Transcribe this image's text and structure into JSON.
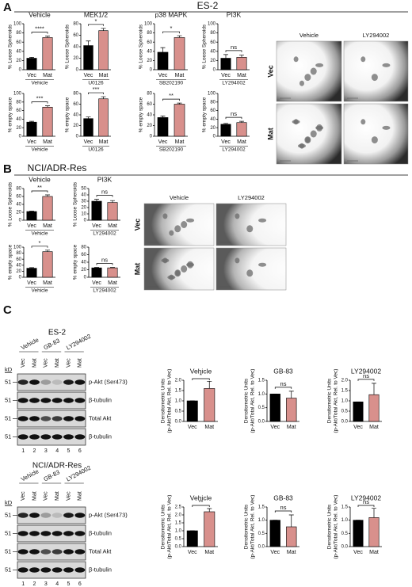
{
  "panel_labels": [
    "A",
    "B",
    "C"
  ],
  "section_titles": [
    "ES-2",
    "NCI/ADR-Res"
  ],
  "micrographs": [
    {
      "columns": [
        "Vehicle",
        "LY294002"
      ],
      "rows": [
        "Vec",
        "Mat"
      ]
    },
    {
      "columns": [
        "Vehicle",
        "LY294002"
      ],
      "rows": [
        "Vec",
        "Mat"
      ]
    }
  ],
  "blots": [
    {
      "title": "ES-2",
      "groups": [
        "Vehicle",
        "GB-83",
        "LY294002"
      ],
      "lanes": [
        "Vec",
        "Mat",
        "Vec",
        "Mat",
        "Vec",
        "Mat"
      ],
      "unit": "kD",
      "markers": [
        "51",
        "51",
        "51",
        "51"
      ],
      "bands": [
        "p-Akt (Ser473)",
        "β-tubulin",
        "Total Akt",
        "β-tubulin"
      ],
      "lane_numbers": [
        "1",
        "2",
        "3",
        "4",
        "5",
        "6"
      ]
    },
    {
      "title": "NCI/ADR-Res",
      "groups": [
        "Vehicle",
        "GB-83",
        "LY294002"
      ],
      "lanes": [
        "Vec",
        "Mat",
        "Vec",
        "Mat",
        "Vec",
        "Mat"
      ],
      "unit": "kD",
      "markers": [
        "51",
        "51",
        "51",
        "51"
      ],
      "bands": [
        "p-Akt (Ser473)",
        "β-tubulin",
        "Total Akt",
        "β-tubulin"
      ],
      "lane_numbers": [
        "1",
        "2",
        "3",
        "4",
        "5",
        "6"
      ]
    }
  ],
  "chart_data": [
    {
      "type": "bar",
      "title": "Vehicle",
      "ylabel": "% Loose Spheroids",
      "xlabel": "Vehicle",
      "categories": [
        "Vec",
        "Mat"
      ],
      "values": [
        25,
        70
      ],
      "errors": [
        2,
        3
      ],
      "colors": [
        "#000000",
        "#d8908c"
      ],
      "annotation": "****",
      "ylim": [
        0,
        100
      ],
      "yticks": [
        0,
        20,
        40,
        60,
        80,
        100
      ]
    },
    {
      "type": "bar",
      "title": "MEK1/2",
      "ylabel": "% Loose Spheroids",
      "xlabel": "U0126",
      "categories": [
        "Vec",
        "Mat"
      ],
      "values": [
        42,
        68
      ],
      "errors": [
        8,
        4
      ],
      "colors": [
        "#000000",
        "#d8908c"
      ],
      "annotation": "*",
      "ylim": [
        0,
        80
      ],
      "yticks": [
        0,
        20,
        40,
        60,
        80
      ]
    },
    {
      "type": "bar",
      "title": "p38 MAPK",
      "ylabel": "% Loose Spheroids",
      "xlabel": "SB202190",
      "categories": [
        "Vec",
        "Mat"
      ],
      "values": [
        38,
        70
      ],
      "errors": [
        10,
        4
      ],
      "colors": [
        "#000000",
        "#d8908c"
      ],
      "annotation": "*",
      "ylim": [
        0,
        100
      ],
      "yticks": [
        0,
        20,
        40,
        60,
        80,
        100
      ]
    },
    {
      "type": "bar",
      "title": "PI3K",
      "ylabel": "% Loose Spheroids",
      "xlabel": "LY294002",
      "categories": [
        "Vec",
        "Mat"
      ],
      "values": [
        25,
        27
      ],
      "errors": [
        8,
        5
      ],
      "colors": [
        "#000000",
        "#d8908c"
      ],
      "annotation": "ns",
      "ylim": [
        0,
        100
      ],
      "yticks": [
        0,
        20,
        40,
        60,
        80,
        100
      ]
    },
    {
      "type": "bar",
      "ylabel": "% empty space",
      "xlabel": "Vehicle",
      "categories": [
        "Vec",
        "Mat"
      ],
      "values": [
        33,
        68
      ],
      "errors": [
        2,
        3
      ],
      "colors": [
        "#000000",
        "#d8908c"
      ],
      "annotation": "***",
      "ylim": [
        0,
        100
      ],
      "yticks": [
        0,
        20,
        40,
        60,
        80,
        100
      ]
    },
    {
      "type": "bar",
      "ylabel": "% empty space",
      "xlabel": "U0126",
      "categories": [
        "Vec",
        "Mat"
      ],
      "values": [
        33,
        70
      ],
      "errors": [
        3,
        4
      ],
      "colors": [
        "#000000",
        "#d8908c"
      ],
      "annotation": "***",
      "ylim": [
        0,
        80
      ],
      "yticks": [
        0,
        20,
        40,
        60,
        80
      ]
    },
    {
      "type": "bar",
      "ylabel": "% empty space",
      "xlabel": "SB202190",
      "categories": [
        "Vec",
        "Mat"
      ],
      "values": [
        35,
        60
      ],
      "errors": [
        3,
        2
      ],
      "colors": [
        "#000000",
        "#d8908c"
      ],
      "annotation": "**",
      "ylim": [
        0,
        80
      ],
      "yticks": [
        0,
        20,
        40,
        60,
        80
      ]
    },
    {
      "type": "bar",
      "ylabel": "% empty space",
      "xlabel": "LY294002",
      "categories": [
        "Vec",
        "Mat"
      ],
      "values": [
        28,
        32
      ],
      "errors": [
        2,
        3
      ],
      "colors": [
        "#000000",
        "#d8908c"
      ],
      "annotation": "ns",
      "ylim": [
        0,
        100
      ],
      "yticks": [
        0,
        20,
        40,
        60,
        80,
        100
      ]
    },
    {
      "type": "bar",
      "title": "Vehicle",
      "ylabel": "% Loose Spheroids",
      "xlabel": "Vehicle",
      "categories": [
        "Vec",
        "Mat"
      ],
      "values": [
        22,
        60
      ],
      "errors": [
        1,
        4
      ],
      "colors": [
        "#000000",
        "#d8908c"
      ],
      "annotation": "**",
      "ylim": [
        0,
        80
      ],
      "yticks": [
        0,
        20,
        40,
        60,
        80
      ]
    },
    {
      "type": "bar",
      "title": "PI3K",
      "ylabel": "% Loose Spheroids",
      "xlabel": "LY294002",
      "categories": [
        "Vec",
        "Mat"
      ],
      "values": [
        30,
        28
      ],
      "errors": [
        3,
        3
      ],
      "colors": [
        "#000000",
        "#d8908c"
      ],
      "annotation": "ns",
      "ylim": [
        0,
        50
      ],
      "yticks": [
        0,
        10,
        20,
        30,
        40,
        50
      ]
    },
    {
      "type": "bar",
      "ylabel": "% empty space",
      "xlabel": "Vehicle",
      "categories": [
        "Vec",
        "Mat"
      ],
      "values": [
        30,
        85
      ],
      "errors": [
        2,
        5
      ],
      "colors": [
        "#000000",
        "#d8908c"
      ],
      "annotation": "*",
      "ylim": [
        0,
        100
      ],
      "yticks": [
        0,
        20,
        40,
        60,
        80,
        100
      ]
    },
    {
      "type": "bar",
      "ylabel": "% empty space",
      "xlabel": "LY294002",
      "categories": [
        "Vec",
        "Mat"
      ],
      "values": [
        25,
        25
      ],
      "errors": [
        1,
        1
      ],
      "colors": [
        "#000000",
        "#d8908c"
      ],
      "annotation": "ns",
      "ylim": [
        0,
        80
      ],
      "yticks": [
        0,
        20,
        40,
        60,
        80
      ]
    },
    {
      "type": "bar",
      "title": "Vehicle",
      "ylabel": [
        "Densitometric Units",
        "(p-Akt/Total Akt, Rel. to Vec)"
      ],
      "categories": [
        "Vec",
        "Mat"
      ],
      "values": [
        1.0,
        1.6
      ],
      "errors": [
        0,
        0.35
      ],
      "colors": [
        "#000000",
        "#d8908c"
      ],
      "annotation": "*",
      "ylim": [
        0,
        2
      ],
      "yticks": [
        {
          "value": 0,
          "label": "0.0"
        },
        0.5,
        {
          "value": 1,
          "label": "1.0"
        },
        1.5,
        {
          "value": 2,
          "label": "2.0"
        }
      ]
    },
    {
      "type": "bar",
      "title": "GB-83",
      "ylabel": [
        "Densitometric Units",
        "(p-Akt/Total Akt, Rel. to Vec)"
      ],
      "categories": [
        "Vec",
        "Mat"
      ],
      "values": [
        1.0,
        0.85
      ],
      "errors": [
        0,
        0.25
      ],
      "colors": [
        "#000000",
        "#d8908c"
      ],
      "annotation": "ns",
      "ylim": [
        0,
        1.5
      ],
      "yticks": [
        {
          "value": 0,
          "label": "0.0"
        },
        0.5,
        {
          "value": 1,
          "label": "1.0"
        },
        1.5
      ]
    },
    {
      "type": "bar",
      "title": "LY294002",
      "ylabel": [
        "Densitometric Units",
        "(p-Akt/Total Akt, Rel. to Vec)"
      ],
      "categories": [
        "Vec",
        "Mat"
      ],
      "values": [
        0.95,
        1.3
      ],
      "errors": [
        0,
        0.55
      ],
      "colors": [
        "#000000",
        "#d8908c"
      ],
      "annotation": "ns",
      "ylim": [
        0,
        2
      ],
      "yticks": [
        {
          "value": 0,
          "label": "0.0"
        },
        0.5,
        {
          "value": 1,
          "label": "1.0"
        },
        1.5,
        {
          "value": 2,
          "label": "2.0"
        }
      ]
    },
    {
      "type": "bar",
      "title": "Vehicle",
      "ylabel": [
        "Densitometric Units",
        "(p-Akt/Total Akt, Rel. to Vec)"
      ],
      "categories": [
        "Vec",
        "Mat"
      ],
      "values": [
        1.0,
        2.2
      ],
      "errors": [
        0,
        0.2
      ],
      "colors": [
        "#000000",
        "#d8908c"
      ],
      "annotation": "**",
      "ylim": [
        0,
        2.5
      ],
      "yticks": [
        {
          "value": 0,
          "label": "0.0"
        },
        0.5,
        {
          "value": 1,
          "label": "1.0"
        },
        1.5,
        {
          "value": 2,
          "label": "2.0"
        },
        2.5
      ]
    },
    {
      "type": "bar",
      "title": "GB-83",
      "ylabel": [
        "Densitometric Units",
        "(p-Akt/Total Akt, Rel. to Vec)"
      ],
      "categories": [
        "Vec",
        "Mat"
      ],
      "values": [
        1.0,
        0.75
      ],
      "errors": [
        0,
        0.45
      ],
      "colors": [
        "#000000",
        "#d8908c"
      ],
      "annotation": "ns",
      "ylim": [
        0,
        1.5
      ],
      "yticks": [
        {
          "value": 0,
          "label": "0.0"
        },
        0.5,
        {
          "value": 1,
          "label": "1.0"
        },
        1.5
      ]
    },
    {
      "type": "bar",
      "title": "LY294002",
      "ylabel": [
        "Densitometric Units",
        "(p-Akt/Total Akt, Rel. to Vec)"
      ],
      "categories": [
        "Vec",
        "Mat"
      ],
      "values": [
        1.0,
        1.1
      ],
      "errors": [
        0,
        0.35
      ],
      "colors": [
        "#000000",
        "#d8908c"
      ],
      "annotation": "ns",
      "ylim": [
        0,
        1.5
      ],
      "yticks": [
        {
          "value": 0,
          "label": "0.0"
        },
        0.5,
        {
          "value": 1,
          "label": "1.0"
        },
        1.5
      ]
    }
  ]
}
